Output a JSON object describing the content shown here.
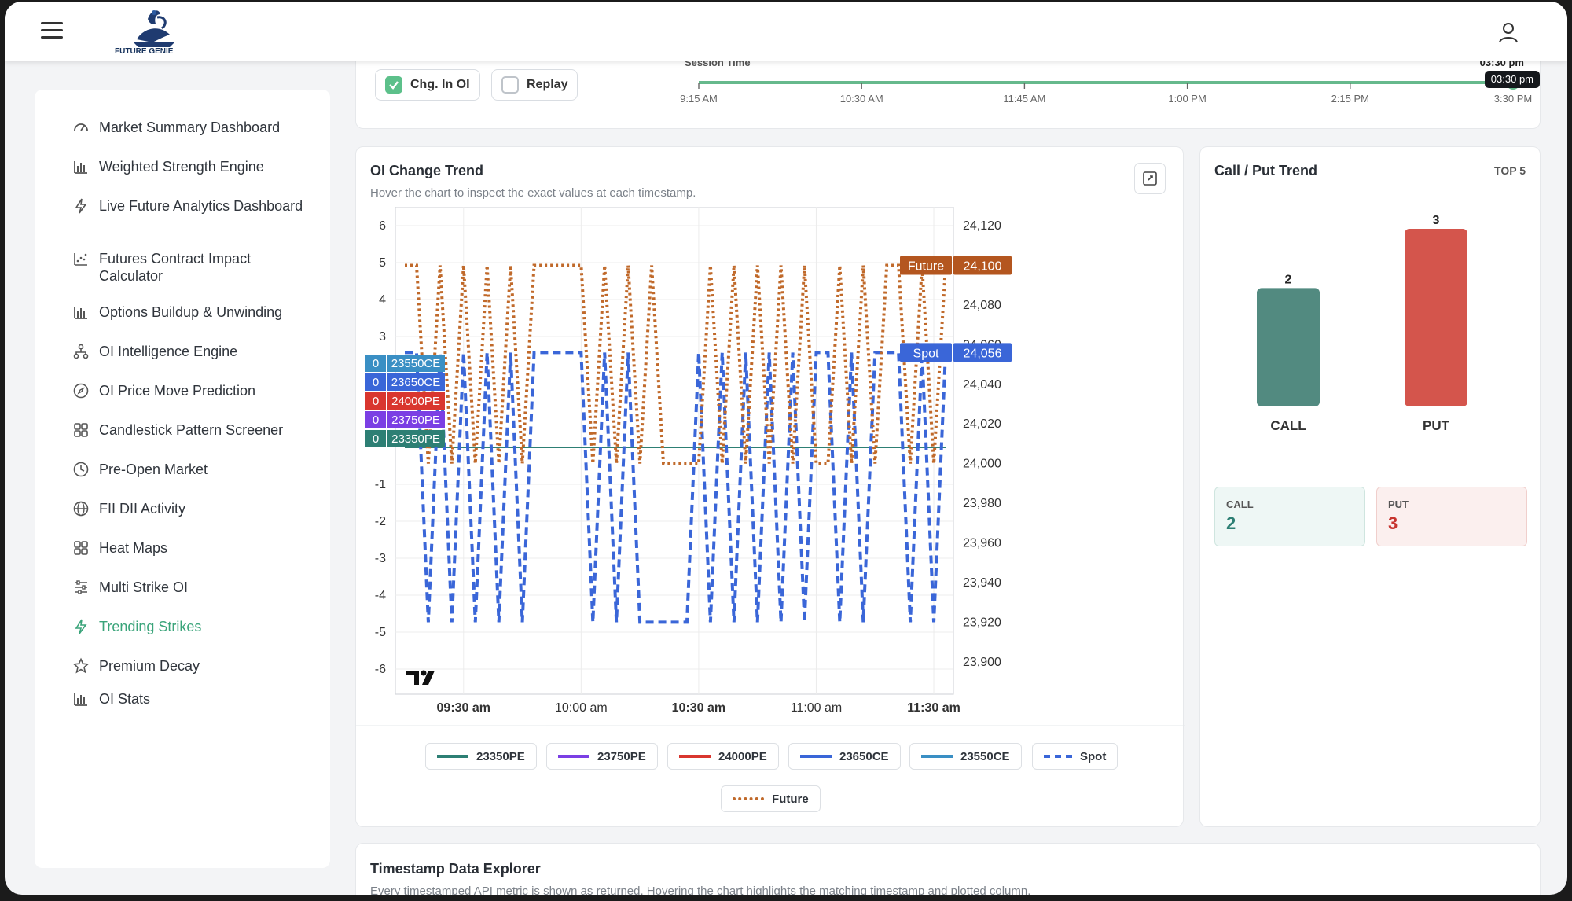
{
  "header": {
    "brand": "FUTURE GENIE"
  },
  "sidebar": {
    "items": [
      {
        "label": "Market Summary Dashboard",
        "icon": "gauge-icon"
      },
      {
        "label": "Weighted Strength Engine",
        "icon": "bar-chart-icon"
      },
      {
        "label": "Live Future Analytics Dashboard",
        "icon": "bolt-icon"
      },
      {
        "label": "Futures Contract Impact Calculator",
        "icon": "scatter-chart-icon"
      },
      {
        "label": "Options Buildup & Unwinding",
        "icon": "bar-chart-icon"
      },
      {
        "label": "OI Intelligence Engine",
        "icon": "hierarchy-icon"
      },
      {
        "label": "OI Price Move Prediction",
        "icon": "compass-icon"
      },
      {
        "label": "Candlestick Pattern Screener",
        "icon": "grid-icon"
      },
      {
        "label": "Pre-Open Market",
        "icon": "clock-icon"
      },
      {
        "label": "FII DII Activity",
        "icon": "globe-icon"
      },
      {
        "label": "Heat Maps",
        "icon": "grid-icon"
      },
      {
        "label": "Multi Strike OI",
        "icon": "sliders-icon"
      },
      {
        "label": "Trending Strikes",
        "icon": "bolt-icon",
        "active": true
      },
      {
        "label": "Premium Decay",
        "icon": "star-icon"
      },
      {
        "label": "OI Stats",
        "icon": "bar-chart-icon"
      }
    ]
  },
  "controls": {
    "chg_in_oi": {
      "label": "Chg. In OI",
      "checked": true
    },
    "replay": {
      "label": "Replay",
      "checked": false
    },
    "session": {
      "label": "Session Time",
      "current": "03:30 pm",
      "tooltip": "03:30 pm",
      "ticks": [
        "9:15 AM",
        "10:30 AM",
        "11:45 AM",
        "1:00 PM",
        "2:15 PM",
        "3:30 PM"
      ],
      "progress": 1.0
    }
  },
  "oi_chart": {
    "title": "OI Change Trend",
    "subtitle": "Hover the chart to inspect the exact values at each timestamp.",
    "expand_icon": "expand-icon",
    "left_ticks": [
      "6",
      "5",
      "4",
      "3",
      "-1",
      "-2",
      "-3",
      "-4",
      "-5",
      "-6"
    ],
    "right_ticks": [
      "24,120",
      "24,080",
      "24,060",
      "24,040",
      "24,020",
      "24,000",
      "23,980",
      "23,960",
      "23,940",
      "23,920",
      "23,900"
    ],
    "x_ticks": [
      {
        "label": "09:30 am",
        "bold": true
      },
      {
        "label": "10:00 am",
        "bold": false
      },
      {
        "label": "10:30 am",
        "bold": true
      },
      {
        "label": "11:00 am",
        "bold": false
      },
      {
        "label": "11:30 am",
        "bold": true
      }
    ],
    "future_tag": {
      "name": "Future",
      "value": "24,100"
    },
    "spot_tag": {
      "name": "Spot",
      "value": "24,056"
    },
    "strike_labels": [
      {
        "value": "0",
        "strike": "23550CE",
        "color": "#3a8fc4"
      },
      {
        "value": "0",
        "strike": "23650CE",
        "color": "#3a66d8"
      },
      {
        "value": "0",
        "strike": "24000PE",
        "color": "#d9362f"
      },
      {
        "value": "0",
        "strike": "23750PE",
        "color": "#7b3fe4"
      },
      {
        "value": "0",
        "strike": "23350PE",
        "color": "#2d7f74"
      }
    ],
    "legend": [
      {
        "label": "23350PE",
        "color": "#2d7f74",
        "style": "solid"
      },
      {
        "label": "23750PE",
        "color": "#7b3fe4",
        "style": "solid"
      },
      {
        "label": "24000PE",
        "color": "#d9362f",
        "style": "solid"
      },
      {
        "label": "23650CE",
        "color": "#3a66d8",
        "style": "solid"
      },
      {
        "label": "23550CE",
        "color": "#3a8fc4",
        "style": "solid"
      },
      {
        "label": "Spot",
        "color": "#3a66d8",
        "style": "dashed"
      },
      {
        "label": "Future",
        "color": "#c0692a",
        "style": "dotted"
      }
    ]
  },
  "chart_data": {
    "type": "line",
    "title": "OI Change Trend",
    "xlabel": "",
    "ylabel": "",
    "x": [
      "09:15",
      "09:18",
      "09:21",
      "09:24",
      "09:27",
      "09:30",
      "09:33",
      "09:36",
      "09:39",
      "09:42",
      "09:45",
      "09:48",
      "09:51",
      "09:54",
      "09:57",
      "10:00",
      "10:03",
      "10:06",
      "10:09",
      "10:12",
      "10:15",
      "10:18",
      "10:21",
      "10:24",
      "10:27",
      "10:30",
      "10:33",
      "10:36",
      "10:39",
      "10:42",
      "10:45",
      "10:48",
      "10:51",
      "10:54",
      "10:57",
      "11:00",
      "11:03",
      "11:06",
      "11:09",
      "11:12",
      "11:15",
      "11:18",
      "11:21",
      "11:24",
      "11:27",
      "11:30",
      "11:33"
    ],
    "y_left_range": [
      -6,
      6
    ],
    "y_right_range": [
      23890,
      24130
    ],
    "series": [
      {
        "name": "Future",
        "axis": "right",
        "values": [
          24100,
          24100,
          24000,
          24100,
          24000,
          24100,
          24000,
          24100,
          24000,
          24100,
          24000,
          24100,
          24100,
          24100,
          24100,
          24100,
          24000,
          24100,
          24000,
          24100,
          24000,
          24100,
          24000,
          24000,
          24000,
          24000,
          24100,
          24000,
          24100,
          24000,
          24100,
          24000,
          24100,
          24000,
          24100,
          24000,
          24000,
          24100,
          24000,
          24100,
          24000,
          24100,
          24100,
          24000,
          24100,
          24000,
          24100
        ]
      },
      {
        "name": "Spot",
        "axis": "right",
        "values": [
          24056,
          24056,
          23920,
          24056,
          23920,
          24056,
          23920,
          24056,
          23920,
          24056,
          23920,
          24056,
          24056,
          24056,
          24056,
          24056,
          23920,
          24056,
          23920,
          24056,
          23920,
          23920,
          23920,
          23920,
          23920,
          24056,
          23920,
          24056,
          23920,
          24056,
          23920,
          24056,
          23920,
          24056,
          23920,
          24056,
          24056,
          23920,
          24056,
          23920,
          24056,
          24056,
          24056,
          23920,
          24056,
          23920,
          24056
        ]
      },
      {
        "name": "23550CE",
        "axis": "left",
        "values": [
          0,
          0,
          0,
          0,
          0,
          0,
          0,
          0,
          0,
          0,
          0,
          0,
          0,
          0,
          0,
          0,
          0,
          0,
          0,
          0,
          0,
          0,
          0,
          0,
          0,
          0,
          0,
          0,
          0,
          0,
          0,
          0,
          0,
          0,
          0,
          0,
          0,
          0,
          0,
          0,
          0,
          0,
          0,
          0,
          0,
          0,
          0
        ]
      },
      {
        "name": "23650CE",
        "axis": "left",
        "values": [
          0,
          0,
          0,
          0,
          0,
          0,
          0,
          0,
          0,
          0,
          0,
          0,
          0,
          0,
          0,
          0,
          0,
          0,
          0,
          0,
          0,
          0,
          0,
          0,
          0,
          0,
          0,
          0,
          0,
          0,
          0,
          0,
          0,
          0,
          0,
          0,
          0,
          0,
          0,
          0,
          0,
          0,
          0,
          0,
          0,
          0,
          0
        ]
      },
      {
        "name": "24000PE",
        "axis": "left",
        "values": [
          0,
          0,
          0,
          0,
          0,
          0,
          0,
          0,
          0,
          0,
          0,
          0,
          0,
          0,
          0,
          0,
          0,
          0,
          0,
          0,
          0,
          0,
          0,
          0,
          0,
          0,
          0,
          0,
          0,
          0,
          0,
          0,
          0,
          0,
          0,
          0,
          0,
          0,
          0,
          0,
          0,
          0,
          0,
          0,
          0,
          0,
          0
        ]
      },
      {
        "name": "23750PE",
        "axis": "left",
        "values": [
          0,
          0,
          0,
          0,
          0,
          0,
          0,
          0,
          0,
          0,
          0,
          0,
          0,
          0,
          0,
          0,
          0,
          0,
          0,
          0,
          0,
          0,
          0,
          0,
          0,
          0,
          0,
          0,
          0,
          0,
          0,
          0,
          0,
          0,
          0,
          0,
          0,
          0,
          0,
          0,
          0,
          0,
          0,
          0,
          0,
          0,
          0
        ]
      },
      {
        "name": "23350PE",
        "axis": "left",
        "values": [
          0,
          0,
          0,
          0,
          0,
          0,
          0,
          0,
          0,
          0,
          0,
          0,
          0,
          0,
          0,
          0,
          0,
          0,
          0,
          0,
          0,
          0,
          0,
          0,
          0,
          0,
          0,
          0,
          0,
          0,
          0,
          0,
          0,
          0,
          0,
          0,
          0,
          0,
          0,
          0,
          0,
          0,
          0,
          0,
          0,
          0,
          0
        ]
      }
    ]
  },
  "cp_trend": {
    "title": "Call / Put Trend",
    "badge": "TOP 5",
    "bars": [
      {
        "label": "CALL",
        "value": 2,
        "color": "#528a80"
      },
      {
        "label": "PUT",
        "value": 3,
        "color": "#d4554c"
      }
    ],
    "call_card": {
      "label": "CALL",
      "value": "2",
      "color": "#2d7f74"
    },
    "put_card": {
      "label": "PUT",
      "value": "3",
      "color": "#c7342f"
    }
  },
  "explorer": {
    "title": "Timestamp Data Explorer",
    "subtitle": "Every timestamped API metric is shown as returned. Hovering the chart highlights the matching timestamp and plotted column."
  }
}
